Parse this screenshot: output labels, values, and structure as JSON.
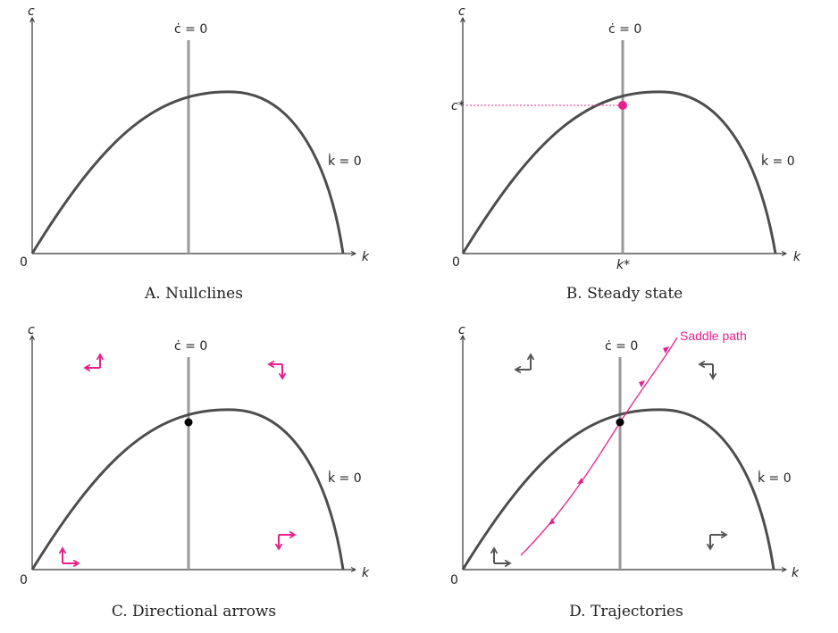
{
  "colors": {
    "accent": "#e8208c",
    "curve": "#4d4d4d",
    "nullcline": "#999999"
  },
  "panels": [
    {
      "caption": "A. Nullclines",
      "y_axis": "c",
      "x_axis": "k",
      "origin": "0",
      "c_dot_label": "ċ = 0",
      "k_dot_label": "k̇ = 0"
    },
    {
      "caption": "B. Steady state",
      "y_axis": "c",
      "x_axis": "k",
      "origin": "0",
      "c_dot_label": "ċ = 0",
      "k_dot_label": "k̇ = 0",
      "c_star": "c*",
      "k_star": "k*"
    },
    {
      "caption": "C. Directional arrows",
      "y_axis": "c",
      "x_axis": "k",
      "origin": "0",
      "c_dot_label": "ċ = 0",
      "k_dot_label": "k̇ = 0"
    },
    {
      "caption": "D. Trajectories",
      "y_axis": "c",
      "x_axis": "k",
      "origin": "0",
      "c_dot_label": "ċ = 0",
      "k_dot_label": "k̇ = 0",
      "saddle_label": "Saddle path"
    }
  ]
}
